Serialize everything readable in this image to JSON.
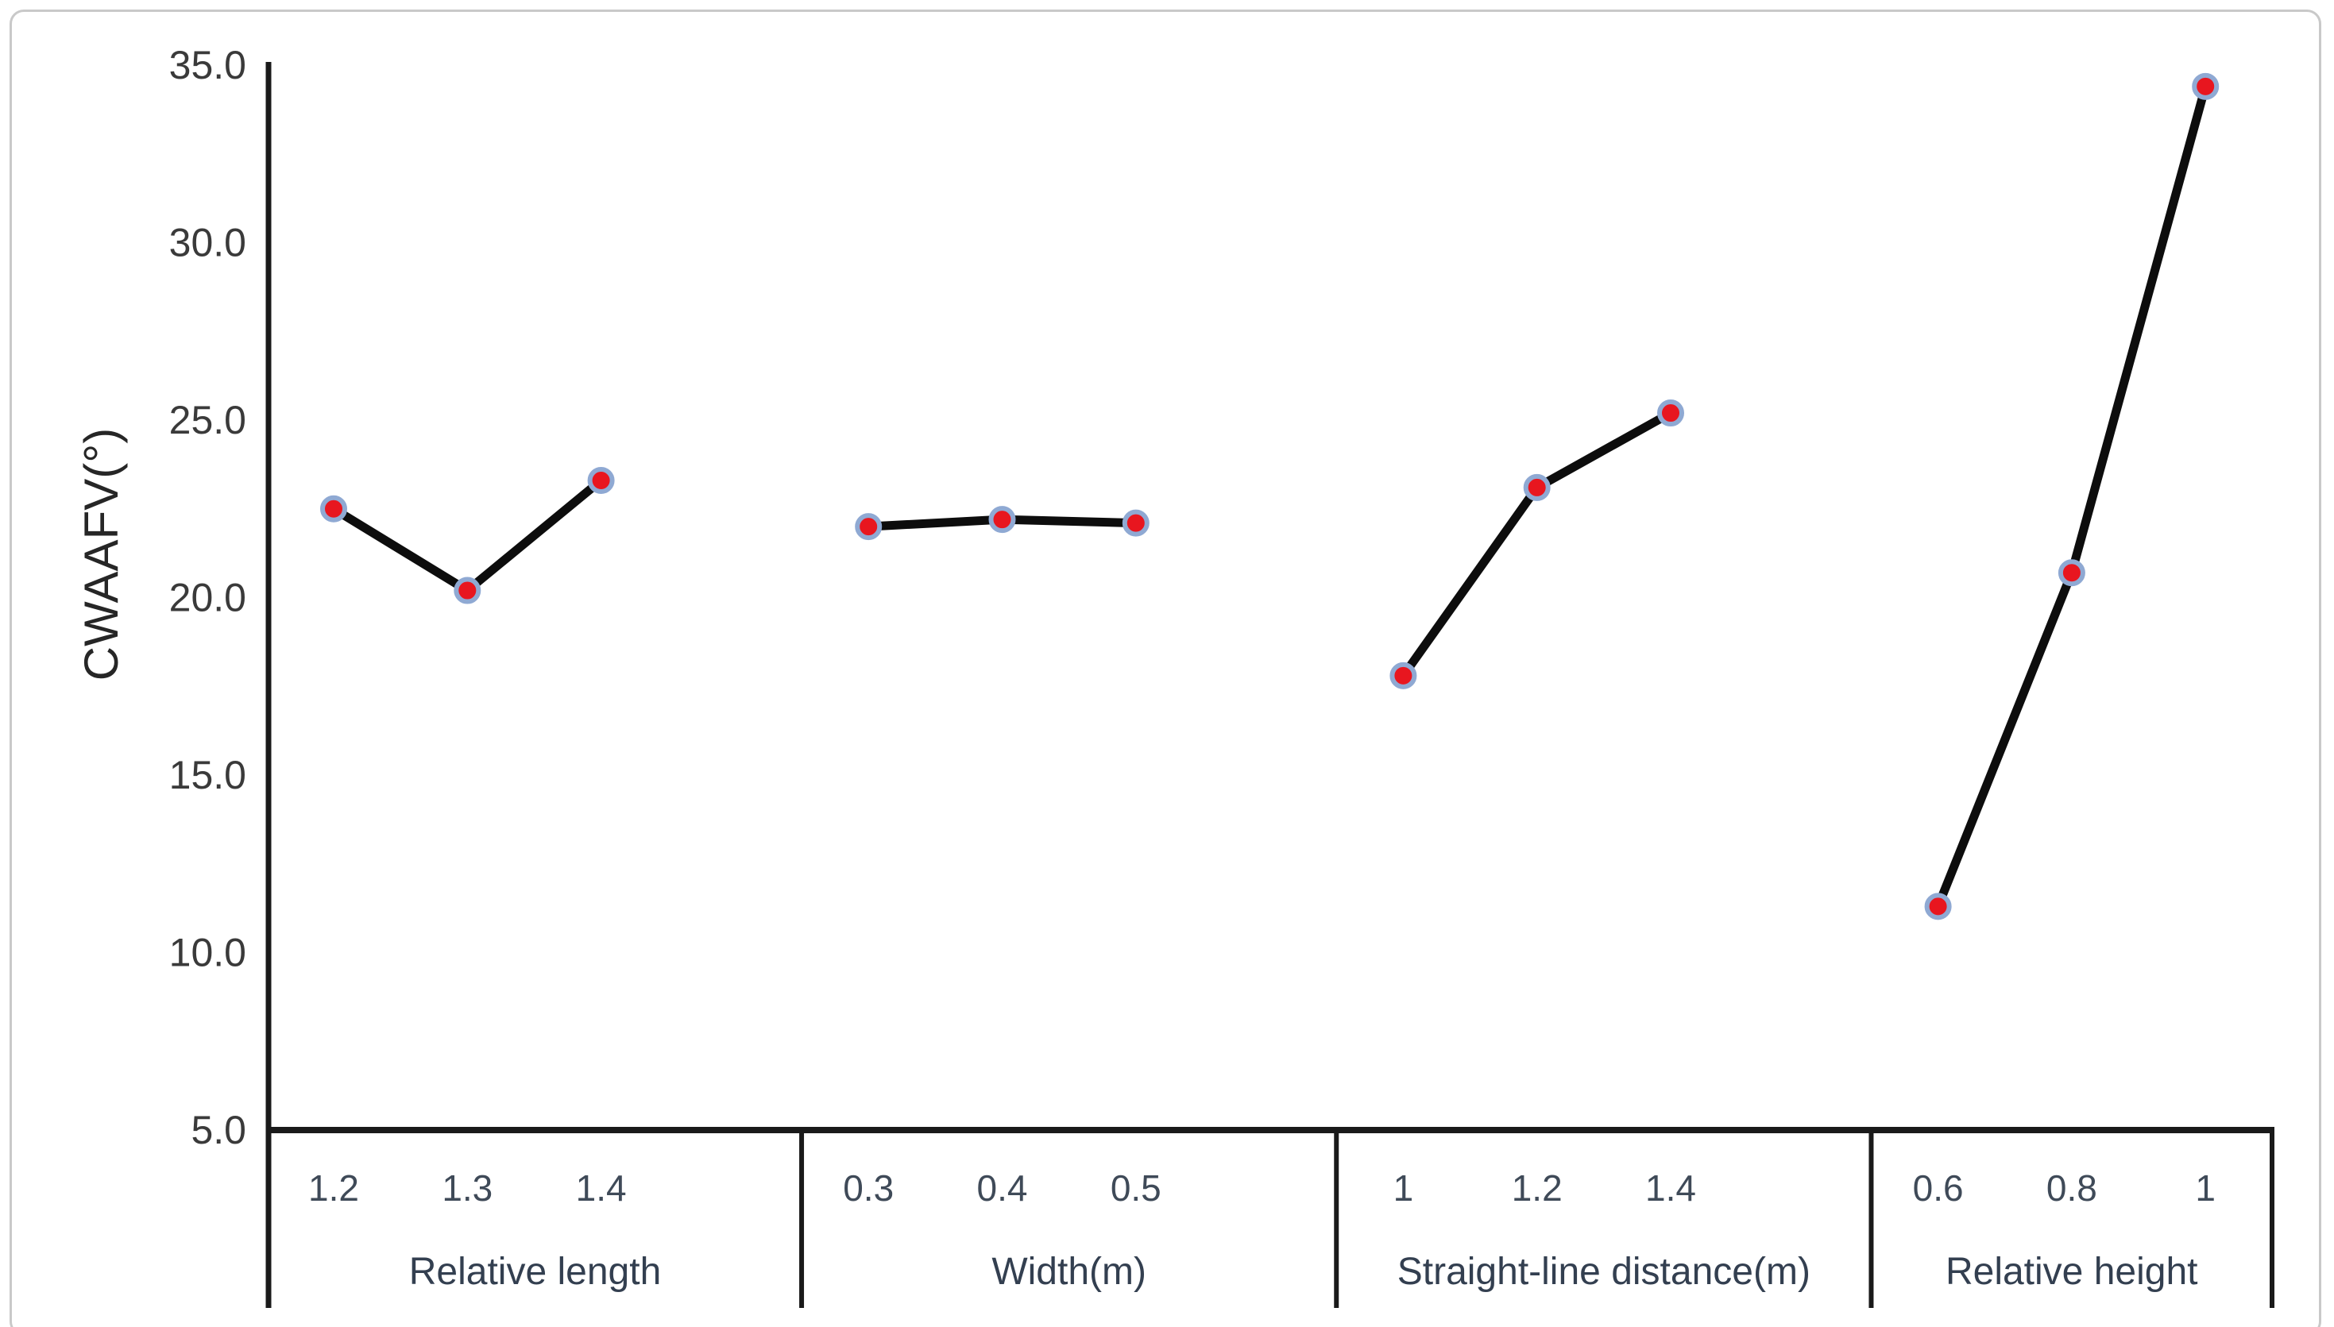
{
  "figure": {
    "kind": "main-effects-line-plot",
    "background": "#ffffff",
    "frame_color": "#c9c9c9"
  },
  "chart_data": {
    "type": "line",
    "title": "",
    "xlabel": "",
    "ylabel": "CWAAFV(°)",
    "ylim": [
      5,
      35
    ],
    "yticks": [
      "35.0",
      "30.0",
      "25.0",
      "20.0",
      "15.0",
      "10.0",
      "5.0"
    ],
    "ytick_values": [
      35,
      30,
      25,
      20,
      15,
      10,
      5
    ],
    "grid": false,
    "legend": null,
    "panels": [
      {
        "category_label": "Relative length",
        "x_labels": [
          "1.2",
          "1.3",
          "1.4"
        ],
        "values": [
          22.5,
          20.2,
          23.3
        ]
      },
      {
        "category_label": "Width(m)",
        "x_labels": [
          "0.3",
          "0.4",
          "0.5"
        ],
        "values": [
          22.0,
          22.2,
          22.1
        ]
      },
      {
        "category_label": "Straight-line distance(m)",
        "x_labels": [
          "1",
          "1.2",
          "1.4"
        ],
        "values": [
          17.8,
          23.1,
          25.2
        ]
      },
      {
        "category_label": "Relative height",
        "x_labels": [
          "0.6",
          "0.8",
          "1"
        ],
        "values": [
          11.3,
          20.7,
          34.4
        ]
      }
    ],
    "colors": {
      "line": "#0d0d0d",
      "marker_fill": "#e8161f",
      "marker_ring": "#8fa9d3",
      "axis": "#1a1a1a",
      "y_tick_label": "#3a3a3a",
      "x_tick_label": "#3f4a58",
      "category_label": "#333f50",
      "y_axis_title": "#262626"
    }
  }
}
